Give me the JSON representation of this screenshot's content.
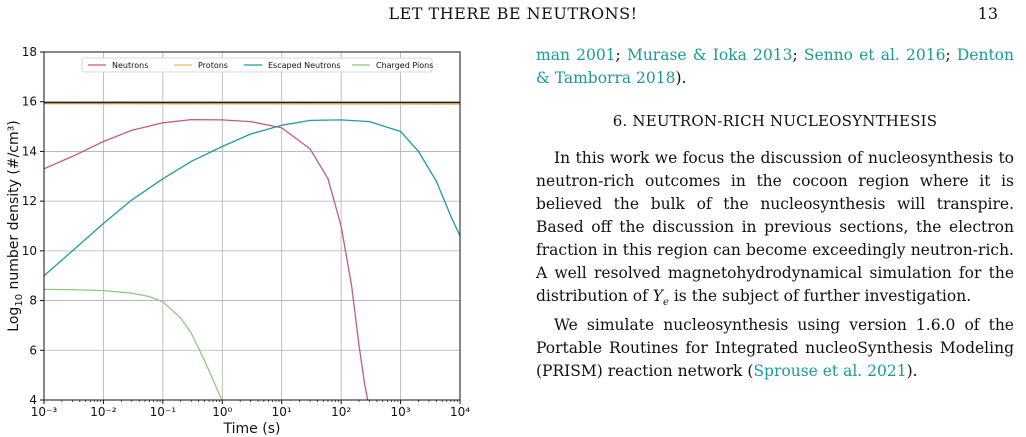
{
  "header": {
    "running_head": "LET THERE BE NEUTRONS!",
    "page_number": "13"
  },
  "right_column": {
    "citation_line": [
      {
        "text": "man 2001",
        "cite": true
      },
      {
        "text": "; ",
        "cite": false
      },
      {
        "text": "Murase & Ioka 2013",
        "cite": true
      },
      {
        "text": "; ",
        "cite": false
      },
      {
        "text": "Senno et al. 2016",
        "cite": true
      },
      {
        "text": "; ",
        "cite": false
      },
      {
        "text": "Denton & Tamborra 2018",
        "cite": true
      },
      {
        "text": ").",
        "cite": false
      }
    ],
    "section_heading": "6. NEUTRON-RICH NUCLEOSYNTHESIS",
    "paragraph1": "In this work we focus the discussion of nucleosynthesis to neutron-rich outcomes in the cocoon region where it is believed the bulk of the nucleosynthesis will transpire. Based off the discussion in previous sections, the electron fraction in this region can become exceedingly neutron-rich. A well resolved magnetohydrodynamical simulation for the distribution of Ye is the subject of further investigation.",
    "paragraph2_text": "We simulate nucleosynthesis using version 1.6.0 of the Portable Routines for Integrated nucleoSynthesis Modeling (PRISM) reaction network (",
    "paragraph2_cite": "Sprouse et al. 2021",
    "paragraph2_end": ")."
  },
  "chart_data": {
    "type": "line",
    "title": "",
    "xlabel": "Time (s)",
    "ylabel": "Log10 number density (#/cm³)",
    "xscale": "log",
    "xlim": [
      0.001,
      10000
    ],
    "ylim": [
      4,
      18
    ],
    "xticks": [
      "10⁻³",
      "10⁻²",
      "10⁻¹",
      "10⁰",
      "10¹",
      "10²",
      "10³",
      "10⁴"
    ],
    "yticks": [
      "4",
      "6",
      "8",
      "10",
      "12",
      "14",
      "16",
      "18"
    ],
    "grid": true,
    "legend_position": "top",
    "series": [
      {
        "name": "Neutrons",
        "color": "#c9587e",
        "x": [
          0.001,
          0.003,
          0.01,
          0.03,
          0.1,
          0.3,
          1,
          3,
          10,
          30,
          60,
          100,
          150,
          200,
          250,
          280
        ],
        "y": [
          13.3,
          13.8,
          14.4,
          14.85,
          15.15,
          15.28,
          15.27,
          15.2,
          14.95,
          14.1,
          12.9,
          11.0,
          8.6,
          6.2,
          4.6,
          4.0
        ]
      },
      {
        "name": "Protons",
        "color": "#f2b75c",
        "x": [
          0.001,
          10000
        ],
        "y": [
          15.92,
          15.9
        ]
      },
      {
        "name": "Escaped Neutrons",
        "color": "#1f9aa6",
        "x": [
          0.001,
          0.003,
          0.01,
          0.03,
          0.1,
          0.3,
          1,
          3,
          10,
          30,
          100,
          300,
          1000,
          2000,
          4000,
          7000,
          10000
        ],
        "y": [
          9.0,
          10.0,
          11.1,
          12.05,
          12.9,
          13.6,
          14.2,
          14.7,
          15.05,
          15.25,
          15.27,
          15.2,
          14.8,
          14.0,
          12.8,
          11.4,
          10.6
        ]
      },
      {
        "name": "Charged Pions",
        "color": "#8dc87c",
        "x": [
          0.001,
          0.003,
          0.01,
          0.03,
          0.06,
          0.1,
          0.2,
          0.3,
          0.5,
          0.7,
          0.9,
          1.0
        ],
        "y": [
          8.45,
          8.44,
          8.4,
          8.3,
          8.15,
          7.95,
          7.3,
          6.7,
          5.6,
          4.8,
          4.2,
          4.0
        ]
      },
      {
        "name": "",
        "color": "#222222",
        "x": [
          0.001,
          10000
        ],
        "y": [
          15.97,
          15.97
        ]
      }
    ]
  }
}
